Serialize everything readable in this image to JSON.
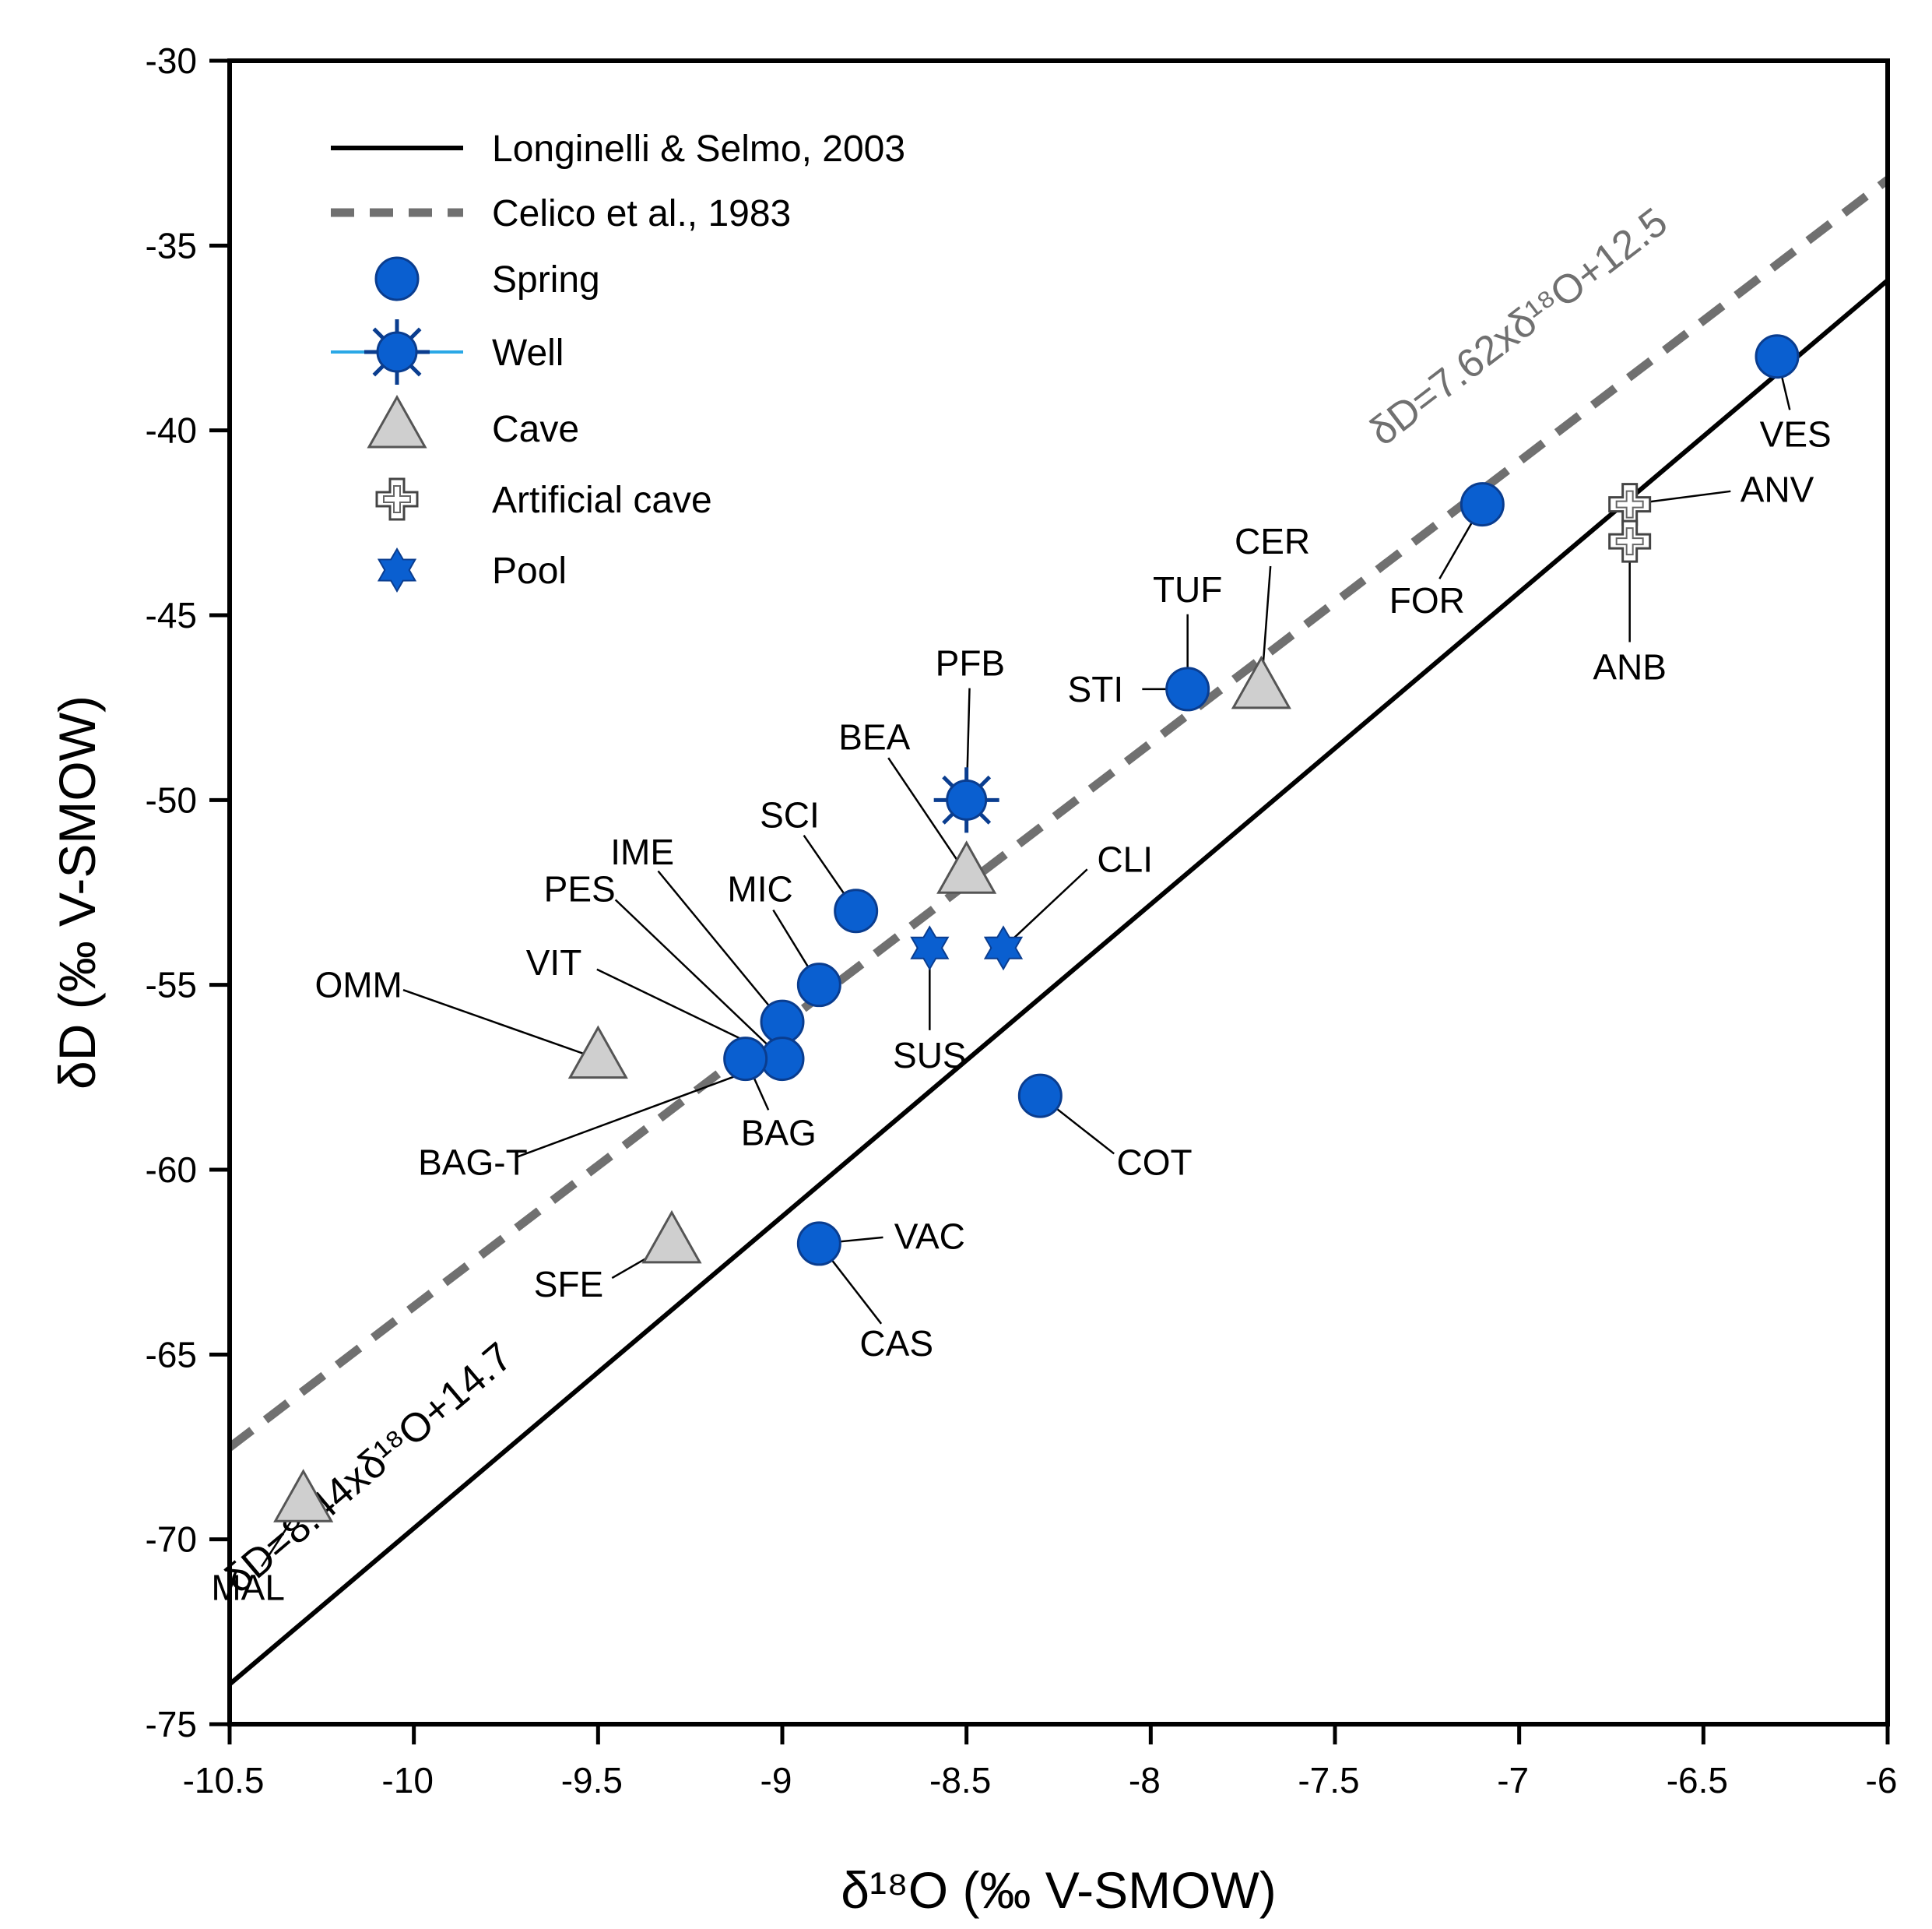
{
  "colors": {
    "spring": "#0a5fd0",
    "spring_stroke": "#0a3d8f",
    "cave_fill": "#cfcfcf",
    "cave_stroke": "#555555",
    "regression_solid": "#000000",
    "regression_dashed": "#707070",
    "well_line": "#2aa8e6"
  },
  "chart_data": {
    "type": "scatter",
    "title": "",
    "xlabel": "δ¹⁸O (‰ V-SMOW)",
    "ylabel": "δD (‰ V-SMOW)",
    "xlim": [
      -10.5,
      -6
    ],
    "ylim": [
      -75,
      -30
    ],
    "x_ticks": [
      -10.5,
      -10,
      -9.5,
      -9,
      -8.5,
      -8,
      -7.5,
      -7,
      -6.5,
      -6
    ],
    "x_tick_labels": [
      "-10.5",
      "-10",
      "-9.5",
      "-9",
      "-8.5",
      "-8",
      "-7.5",
      "-7",
      "-6.5",
      "-6"
    ],
    "y_ticks": [
      -30,
      -35,
      -40,
      -45,
      -50,
      -55,
      -60,
      -65,
      -70,
      -75
    ],
    "y_tick_labels": [
      "-30",
      "-35",
      "-40",
      "-45",
      "-50",
      "-55",
      "-60",
      "-65",
      "-70",
      "-75"
    ],
    "grid": false,
    "legend_position": "top-left",
    "lines": [
      {
        "name": "Longinelli & Selmo, 2003",
        "style": "solid",
        "slope": 8.44,
        "intercept": 14.7,
        "equation": "δD=8.44xδ¹⁸O+14.7"
      },
      {
        "name": "Celico et al., 1983",
        "style": "dashed",
        "slope": 7.62,
        "intercept": 12.5,
        "equation": "δD=7.62xδ¹⁸O+12.5"
      }
    ],
    "legend": [
      {
        "key": "longinelli",
        "label": "Longinelli & Selmo, 2003"
      },
      {
        "key": "celico",
        "label": "Celico et al., 1983"
      },
      {
        "key": "spring",
        "label": "Spring"
      },
      {
        "key": "well",
        "label": "Well"
      },
      {
        "key": "cave",
        "label": "Cave"
      },
      {
        "key": "artificial",
        "label": "Artificial cave"
      },
      {
        "key": "pool",
        "label": "Pool"
      }
    ],
    "points": [
      {
        "id": "VES",
        "type": "spring",
        "x": -6.3,
        "y": -38.0,
        "label_xy": [
          -6.25,
          -40.1
        ]
      },
      {
        "id": "FOR",
        "type": "spring",
        "x": -7.1,
        "y": -42.0,
        "label_xy": [
          -7.25,
          -44.6
        ]
      },
      {
        "id": "TUF",
        "type": "spring",
        "x": -7.9,
        "y": -47.0,
        "label_xy": [
          -7.9,
          -44.3
        ]
      },
      {
        "id": "STI",
        "type": "spring",
        "x": -7.9,
        "y": -47.0,
        "label_xy": [
          -8.15,
          -47.0
        ]
      },
      {
        "id": "SCI",
        "type": "spring",
        "x": -8.8,
        "y": -53.0,
        "label_xy": [
          -8.98,
          -50.4
        ]
      },
      {
        "id": "MIC",
        "type": "spring",
        "x": -8.9,
        "y": -55.0,
        "label_xy": [
          -9.06,
          -52.4
        ]
      },
      {
        "id": "IME",
        "type": "spring",
        "x": -9.0,
        "y": -56.0,
        "label_xy": [
          -9.38,
          -51.4
        ]
      },
      {
        "id": "PES",
        "type": "spring",
        "x": -9.0,
        "y": -57.0,
        "label_xy": [
          -9.55,
          -52.4
        ]
      },
      {
        "id": "VIT",
        "type": "spring",
        "x": -9.0,
        "y": -57.0,
        "label_xy": [
          -9.62,
          -54.4
        ]
      },
      {
        "id": "BAG",
        "type": "spring",
        "x": -9.1,
        "y": -57.0,
        "label_xy": [
          -9.01,
          -59.0
        ]
      },
      {
        "id": "BAG-T",
        "type": "spring",
        "x": -9.0,
        "y": -57.0,
        "label_xy": [
          -9.84,
          -59.8
        ]
      },
      {
        "id": "COT",
        "type": "spring",
        "x": -8.3,
        "y": -58.0,
        "label_xy": [
          -7.99,
          -59.8
        ]
      },
      {
        "id": "VAC",
        "type": "spring",
        "x": -8.9,
        "y": -62.0,
        "label_xy": [
          -8.6,
          -61.8
        ]
      },
      {
        "id": "CAS",
        "type": "spring",
        "x": -8.9,
        "y": -62.0,
        "label_xy": [
          -8.69,
          -64.7
        ]
      },
      {
        "id": "PFB",
        "type": "well",
        "x": -8.5,
        "y": -50.0,
        "label_xy": [
          -8.49,
          -46.3
        ]
      },
      {
        "id": "SUS",
        "type": "pool",
        "x": -8.6,
        "y": -54.0,
        "label_xy": [
          -8.6,
          -56.9
        ]
      },
      {
        "id": "CLI",
        "type": "pool",
        "x": -8.4,
        "y": -54.0,
        "label_xy": [
          -8.07,
          -51.6
        ]
      },
      {
        "id": "CER",
        "type": "cave",
        "x": -7.7,
        "y": -47.0,
        "label_xy": [
          -7.67,
          -43.0
        ]
      },
      {
        "id": "BEA",
        "type": "cave",
        "x": -8.5,
        "y": -52.0,
        "label_xy": [
          -8.75,
          -48.3
        ]
      },
      {
        "id": "OMM",
        "type": "cave",
        "x": -9.5,
        "y": -57.0,
        "label_xy": [
          -10.15,
          -55.0
        ]
      },
      {
        "id": "SFE",
        "type": "cave",
        "x": -9.3,
        "y": -62.0,
        "label_xy": [
          -9.58,
          -63.1
        ]
      },
      {
        "id": "MAL",
        "type": "cave",
        "x": -10.3,
        "y": -69.0,
        "label_xy": [
          -10.45,
          -71.3
        ]
      },
      {
        "id": "ANV",
        "type": "artificial",
        "x": -6.7,
        "y": -42.0,
        "label_xy": [
          -6.3,
          -41.6
        ]
      },
      {
        "id": "ANB",
        "type": "artificial",
        "x": -6.7,
        "y": -43.0,
        "label_xy": [
          -6.7,
          -46.4
        ]
      }
    ]
  }
}
